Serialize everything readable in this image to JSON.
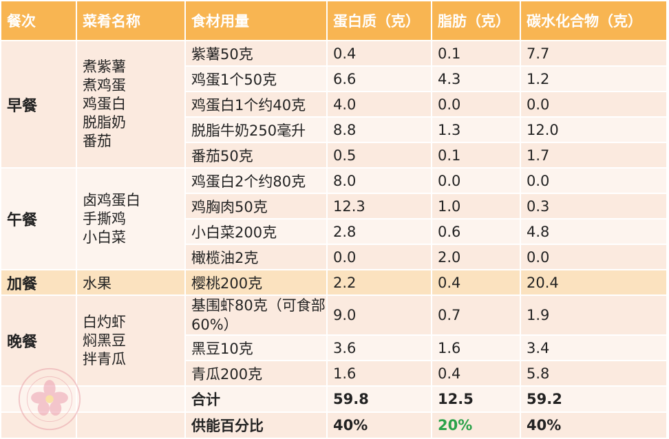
{
  "headers": [
    "餐次",
    "菜肴名称",
    "食材用量",
    "蛋白质（克）",
    "脂肪（克）",
    "碳水化合物（克）"
  ],
  "meals": {
    "breakfast": {
      "name": "早餐",
      "dishes": "煮紫薯\n煮鸡蛋\n鸡蛋白\n脱脂奶\n番茄",
      "rows": [
        {
          "food": "紫薯50克",
          "protein": "0.4",
          "fat": "0.1",
          "carb": "7.7"
        },
        {
          "food": "鸡蛋1个50克",
          "protein": "6.6",
          "fat": "4.3",
          "carb": "1.2"
        },
        {
          "food": "鸡蛋白1个约40克",
          "protein": "4.0",
          "fat": "0.0",
          "carb": "0.0"
        },
        {
          "food": "脱脂牛奶250毫升",
          "protein": "8.8",
          "fat": "1.3",
          "carb": "12.0"
        },
        {
          "food": "番茄50克",
          "protein": "0.5",
          "fat": "0.1",
          "carb": "1.7"
        }
      ]
    },
    "lunch": {
      "name": "午餐",
      "dishes": "卤鸡蛋白\n手撕鸡\n小白菜",
      "rows": [
        {
          "food": "鸡蛋白2个约80克",
          "protein": "8.0",
          "fat": "0.0",
          "carb": "0.0"
        },
        {
          "food": "鸡胸肉50克",
          "protein": "12.3",
          "fat": "1.0",
          "carb": "0.3"
        },
        {
          "food": "小白菜200克",
          "protein": "2.8",
          "fat": "0.6",
          "carb": "4.8"
        },
        {
          "food": "橄榄油2克",
          "protein": "0.0",
          "fat": "2.0",
          "carb": "0.0"
        }
      ]
    },
    "snack": {
      "name": "加餐",
      "dishes": "水果",
      "rows": [
        {
          "food": "樱桃200克",
          "protein": "2.2",
          "fat": "0.4",
          "carb": "20.4"
        }
      ]
    },
    "dinner": {
      "name": "晚餐",
      "dishes": "白灼虾\n焖黑豆\n拌青瓜",
      "rows": [
        {
          "food": "基围虾80克（可食部60%）",
          "protein": "9.0",
          "fat": "0.7",
          "carb": "1.9"
        },
        {
          "food": "黑豆10克",
          "protein": "3.6",
          "fat": "1.6",
          "carb": "3.4"
        },
        {
          "food": "青瓜200克",
          "protein": "1.6",
          "fat": "0.4",
          "carb": "5.8"
        }
      ]
    }
  },
  "total": {
    "label": "合计",
    "protein": "59.8",
    "fat": "12.5",
    "carb": "59.2"
  },
  "ratio": {
    "label": "供能百分比",
    "protein": "40%",
    "fat": "20%",
    "carb": "40%"
  },
  "colors": {
    "header": "#f8b552",
    "row_a": "#fbeadf",
    "row_b": "#fdf4ee",
    "snack": "#fbe2bf",
    "fat_highlight": "#2aa24a"
  },
  "watermark_icon": "flower-logo-icon"
}
